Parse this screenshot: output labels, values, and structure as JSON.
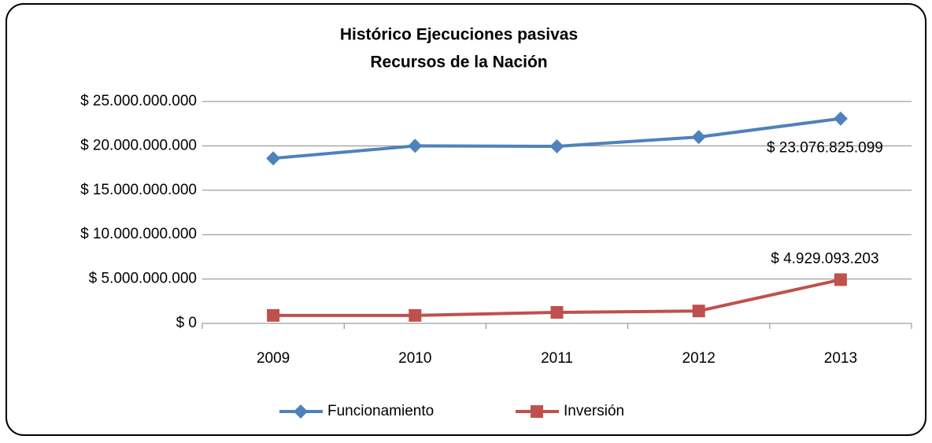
{
  "chart_data": {
    "type": "line",
    "title": [
      "Histórico Ejecuciones pasivas",
      "Recursos de la Nación"
    ],
    "categories": [
      "2009",
      "2010",
      "2011",
      "2012",
      "2013"
    ],
    "series": [
      {
        "name": "Funcionamiento",
        "color": "#4f81bd",
        "marker": "diamond",
        "values": [
          18600000000,
          20000000000,
          19950000000,
          21000000000,
          23076825099
        ],
        "value_labels": [
          null,
          null,
          null,
          null,
          "$ 23.076.825.099"
        ]
      },
      {
        "name": "Inversión",
        "color": "#c0504d",
        "marker": "square",
        "values": [
          900000000,
          900000000,
          1240000000,
          1400000000,
          4929093203
        ],
        "value_labels": [
          null,
          null,
          null,
          null,
          "$ 4.929.093.203"
        ]
      }
    ],
    "ylim": [
      0,
      25000000000
    ],
    "yticks": [
      {
        "value": 0,
        "label": "$ 0"
      },
      {
        "value": 5000000000,
        "label": "$ 5.000.000.000"
      },
      {
        "value": 10000000000,
        "label": "$ 10.000.000.000"
      },
      {
        "value": 15000000000,
        "label": "$ 15.000.000.000"
      },
      {
        "value": 20000000000,
        "label": "$ 20.000.000.000"
      },
      {
        "value": 25000000000,
        "label": "$ 25.000.000.000"
      }
    ],
    "grid": true,
    "legend": "bottom"
  }
}
